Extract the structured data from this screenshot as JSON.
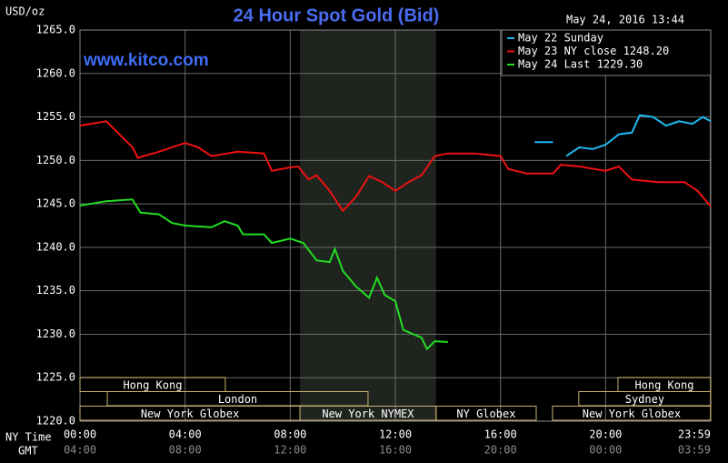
{
  "chart_data": {
    "type": "line",
    "title": "24 Hour Spot Gold (Bid)",
    "y_axis_label": "USD/oz",
    "timestamp": "May 24, 2016 13:44",
    "watermark": "www.kitco.com",
    "x_axis_label": "NY Time",
    "x2_axis_label": "GMT",
    "xlim": [
      0,
      24
    ],
    "ylim": [
      1220,
      1265
    ],
    "yticks": [
      {
        "value": 1220,
        "label": "1220.0"
      },
      {
        "value": 1225,
        "label": "1225.0"
      },
      {
        "value": 1230,
        "label": "1230.0"
      },
      {
        "value": 1235,
        "label": "1235.0"
      },
      {
        "value": 1240,
        "label": "1240.0"
      },
      {
        "value": 1245,
        "label": "1245.0"
      },
      {
        "value": 1250,
        "label": "1250.0"
      },
      {
        "value": 1255,
        "label": "1255.0"
      },
      {
        "value": 1260,
        "label": "1260.0"
      },
      {
        "value": 1265,
        "label": "1265.0"
      }
    ],
    "xticks": [
      {
        "value": 0,
        "label": "00:00"
      },
      {
        "value": 4,
        "label": "04:00"
      },
      {
        "value": 8,
        "label": "08:00"
      },
      {
        "value": 12,
        "label": "12:00"
      },
      {
        "value": 16,
        "label": "16:00"
      },
      {
        "value": 20,
        "label": "20:00"
      },
      {
        "value": 23.98,
        "label": "23:59"
      }
    ],
    "x2tick_labels": [
      "04:00",
      "08:00",
      "12:00",
      "16:00",
      "20:00",
      "00:00",
      "03:59"
    ],
    "grid": true,
    "shaded_region": [
      8.37,
      13.55
    ],
    "series": [
      {
        "name": "May 22 Sunday",
        "color": "#1fb8f0",
        "x": [
          17.3,
          18.0,
          18.2,
          18.5,
          19.0,
          19.5,
          20.0,
          20.5,
          21.0,
          21.3,
          21.8,
          22.3,
          22.8,
          23.3,
          23.7,
          24.0
        ],
        "values": [
          1252.1,
          1252.1,
          null,
          1250.5,
          1251.5,
          1251.3,
          1251.8,
          1253.0,
          1253.2,
          1255.2,
          1255.0,
          1254.0,
          1254.5,
          1254.2,
          1255.0,
          1254.5
        ]
      },
      {
        "name": "May 23 NY close 1248.20",
        "color": "#ee1111",
        "x": [
          0,
          1,
          2,
          2.2,
          3,
          4,
          4.5,
          5,
          6,
          7,
          7.3,
          8,
          8.3,
          8.7,
          9,
          9.5,
          10,
          10.5,
          11,
          11.5,
          12,
          12.5,
          13,
          13.5,
          14,
          15,
          16,
          16.3,
          17,
          18,
          18.3,
          19,
          20,
          20.5,
          21,
          22,
          23,
          23.5,
          24
        ],
        "values": [
          1254.0,
          1254.5,
          1251.5,
          1250.3,
          1251.0,
          1252.0,
          1251.5,
          1250.5,
          1251.0,
          1250.8,
          1248.8,
          1249.2,
          1249.3,
          1247.8,
          1248.3,
          1246.5,
          1244.2,
          1245.8,
          1248.2,
          1247.5,
          1246.5,
          1247.5,
          1248.3,
          1250.5,
          1250.8,
          1250.8,
          1250.5,
          1249.0,
          1248.5,
          1248.5,
          1249.5,
          1249.3,
          1248.8,
          1249.3,
          1247.8,
          1247.5,
          1247.5,
          1246.5,
          1244.7
        ]
      },
      {
        "name": "May 24 Last 1229.30",
        "color": "#22dd22",
        "x": [
          0,
          1,
          2,
          2.3,
          3,
          3.5,
          4,
          5,
          5.5,
          6,
          6.2,
          7,
          7.3,
          8,
          8.5,
          9,
          9.5,
          9.7,
          10,
          10.5,
          11,
          11.3,
          11.6,
          12,
          12.3,
          13,
          13.2,
          13.5,
          14
        ],
        "values": [
          1244.8,
          1245.3,
          1245.5,
          1244.0,
          1243.8,
          1242.8,
          1242.5,
          1242.3,
          1243.0,
          1242.5,
          1241.5,
          1241.5,
          1240.5,
          1241.0,
          1240.5,
          1238.5,
          1238.3,
          1239.8,
          1237.3,
          1235.5,
          1234.2,
          1236.5,
          1234.5,
          1233.8,
          1230.5,
          1229.6,
          1228.3,
          1229.2,
          1229.1
        ]
      }
    ],
    "sessions": [
      {
        "name": "Hong Kong",
        "row": 0,
        "start": 0,
        "end": 5.53
      },
      {
        "name": "Hong Kong",
        "row": 0,
        "start": 20.47,
        "end": 24
      },
      {
        "name": "London",
        "row": 1,
        "start": 1.04,
        "end": 10.96
      },
      {
        "name": "Sydney",
        "row": 1,
        "start": 18.98,
        "end": 24
      },
      {
        "name": "New York Globex",
        "row": 2,
        "start": 0,
        "end": 8.37
      },
      {
        "name": "New York NYMEX",
        "row": 2,
        "start": 8.37,
        "end": 13.55
      },
      {
        "name": "NY Globex",
        "row": 2,
        "start": 13.55,
        "end": 17.36
      },
      {
        "name": "New York Globex",
        "row": 2,
        "start": 17.98,
        "end": 24
      }
    ]
  }
}
